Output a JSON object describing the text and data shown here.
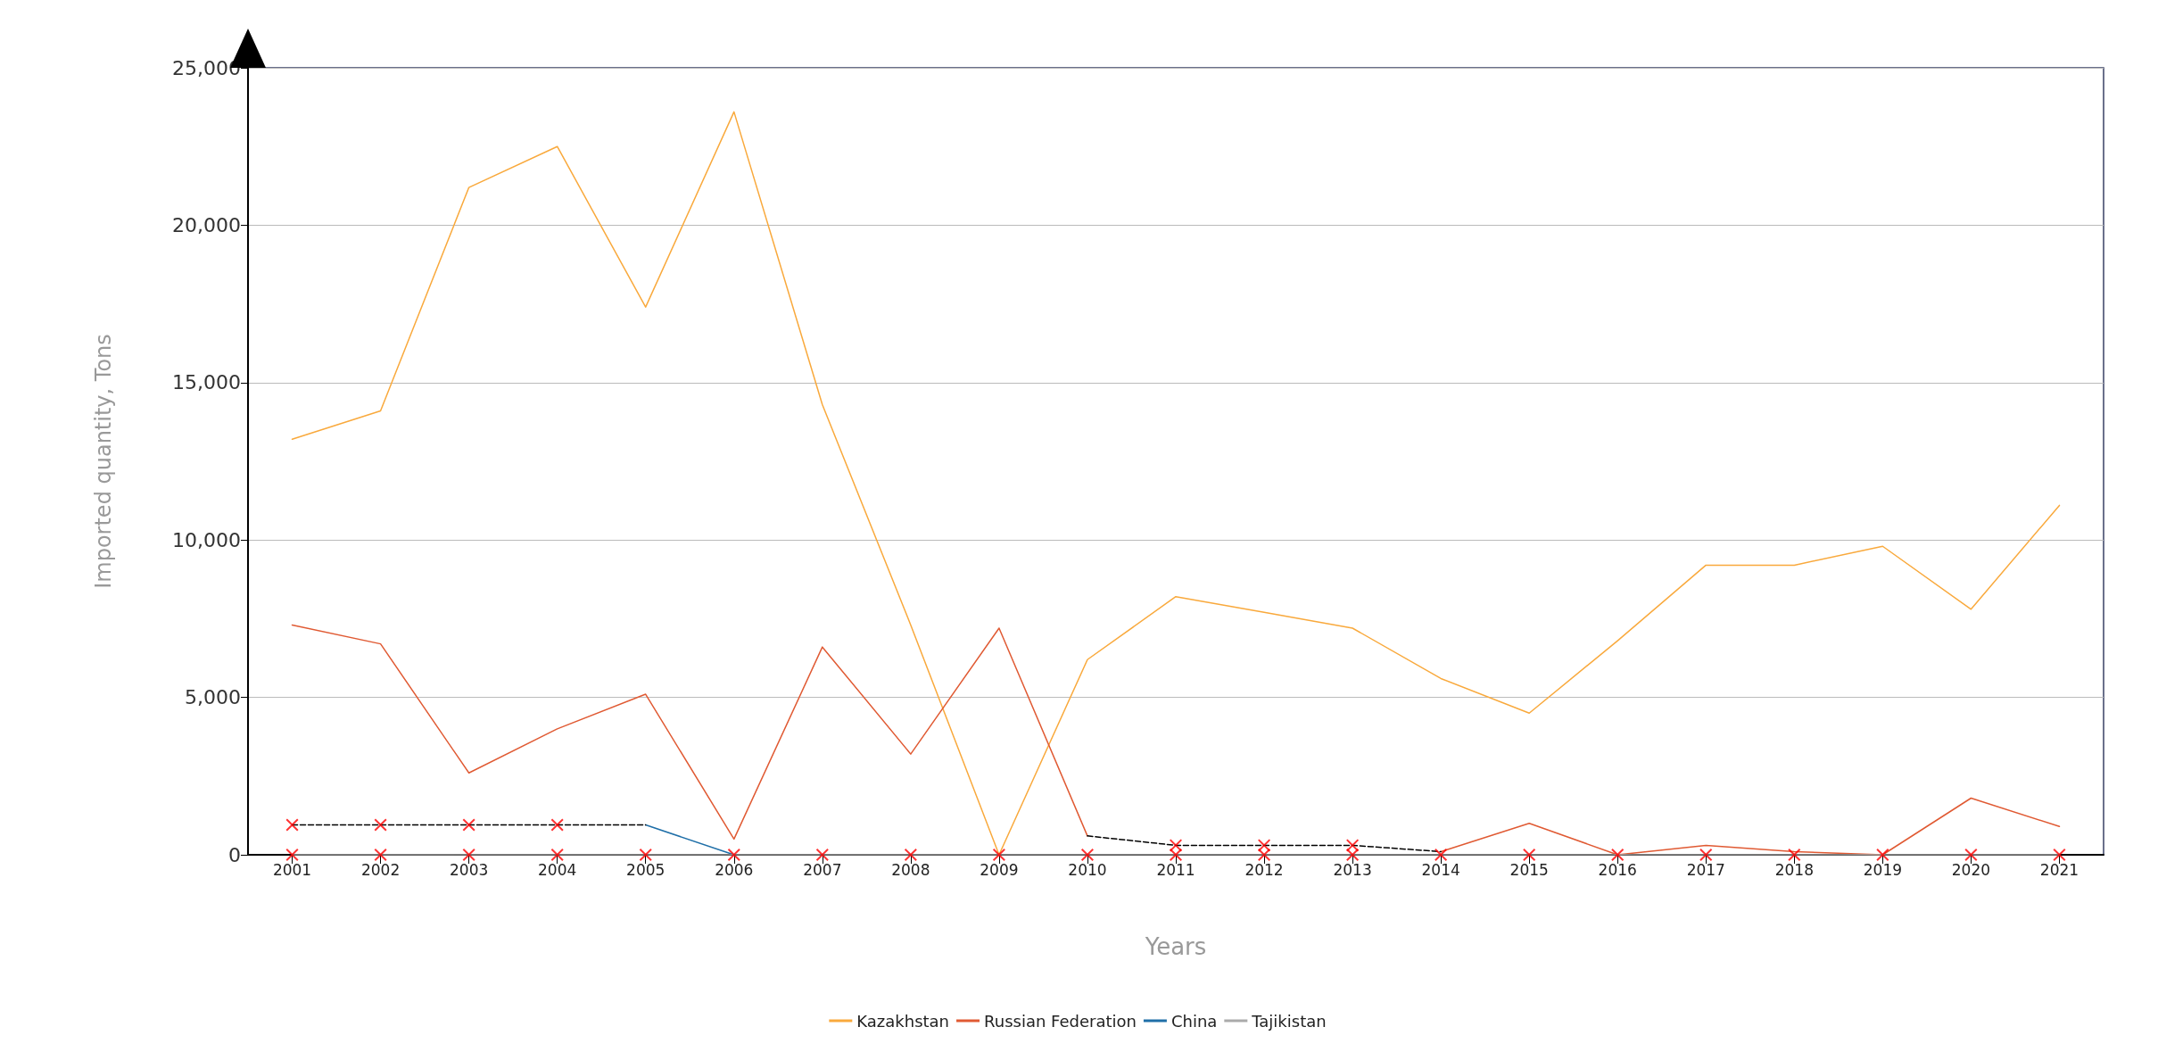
{
  "chart_data": {
    "type": "line",
    "xlabel": "Years",
    "ylabel": "Imported quantity, Tons",
    "categories": [
      "2001",
      "2002",
      "2003",
      "2004",
      "2005",
      "2006",
      "2007",
      "2008",
      "2009",
      "2010",
      "2011",
      "2012",
      "2013",
      "2014",
      "2015",
      "2016",
      "2017",
      "2018",
      "2019",
      "2020",
      "2021"
    ],
    "series": [
      {
        "name": "Kazakhstan",
        "color": "#f9a93c",
        "values": [
          13200,
          14100,
          21200,
          22500,
          17400,
          23600,
          14300,
          7300,
          0,
          6200,
          8200,
          7700,
          7200,
          5600,
          4500,
          6800,
          9200,
          9200,
          9800,
          7800,
          11100
        ]
      },
      {
        "name": "Russian Federation",
        "color": "#e05a33",
        "values": [
          7300,
          6700,
          2600,
          4000,
          5100,
          500,
          6600,
          3200,
          7200,
          600,
          null,
          null,
          null,
          100,
          1000,
          0,
          300,
          100,
          0,
          1800,
          900
        ]
      },
      {
        "name": "China",
        "color": "#1f6fa8",
        "values": [
          null,
          null,
          null,
          null,
          950,
          0,
          null,
          null,
          null,
          null,
          null,
          null,
          null,
          null,
          null,
          null,
          null,
          null,
          null,
          null,
          null
        ]
      },
      {
        "name": "Tajikistan",
        "color": "#aaaaaa",
        "values": [
          0,
          0,
          0,
          0,
          0,
          0,
          0,
          0,
          0,
          0,
          0,
          0,
          0,
          0,
          0,
          0,
          0,
          0,
          0,
          0,
          0
        ]
      },
      {
        "color": "#000000",
        "line_style": "dashed",
        "values": [
          950,
          950,
          950,
          950,
          950,
          null,
          null,
          null,
          null,
          null,
          null,
          null,
          null,
          null,
          null,
          null,
          null,
          null,
          null,
          null,
          null
        ]
      },
      {
        "color": "#000000",
        "line_style": "dashed",
        "values": [
          null,
          null,
          null,
          null,
          null,
          null,
          null,
          null,
          null,
          600,
          300,
          300,
          300,
          100,
          null,
          null,
          null,
          null,
          null,
          null,
          null
        ]
      },
      {
        "type": "scatter",
        "marker": "cross",
        "color": "#ff0000",
        "values": [
          950,
          950,
          950,
          950,
          null,
          null,
          null,
          null,
          null,
          null,
          300,
          300,
          300,
          null,
          null,
          null,
          null,
          null,
          null,
          null,
          null
        ]
      },
      {
        "type": "scatter",
        "marker": "cross",
        "color": "#ff0000",
        "values": [
          0,
          0,
          0,
          0,
          0,
          0,
          0,
          0,
          0,
          0,
          0,
          0,
          0,
          0,
          0,
          0,
          0,
          0,
          0,
          0,
          0
        ]
      }
    ],
    "ylim": [
      0,
      25000
    ],
    "yticks": [
      0,
      {
        "value": 5000,
        "label": "5,000"
      },
      {
        "value": 10000,
        "label": "10,000"
      },
      {
        "value": 15000,
        "label": "15,000"
      },
      {
        "value": 20000,
        "label": "20,000"
      },
      {
        "value": 25000,
        "label": "25,000"
      }
    ],
    "grid": "y",
    "legend": "bottom",
    "marker": "none",
    "line_style": "solid"
  }
}
